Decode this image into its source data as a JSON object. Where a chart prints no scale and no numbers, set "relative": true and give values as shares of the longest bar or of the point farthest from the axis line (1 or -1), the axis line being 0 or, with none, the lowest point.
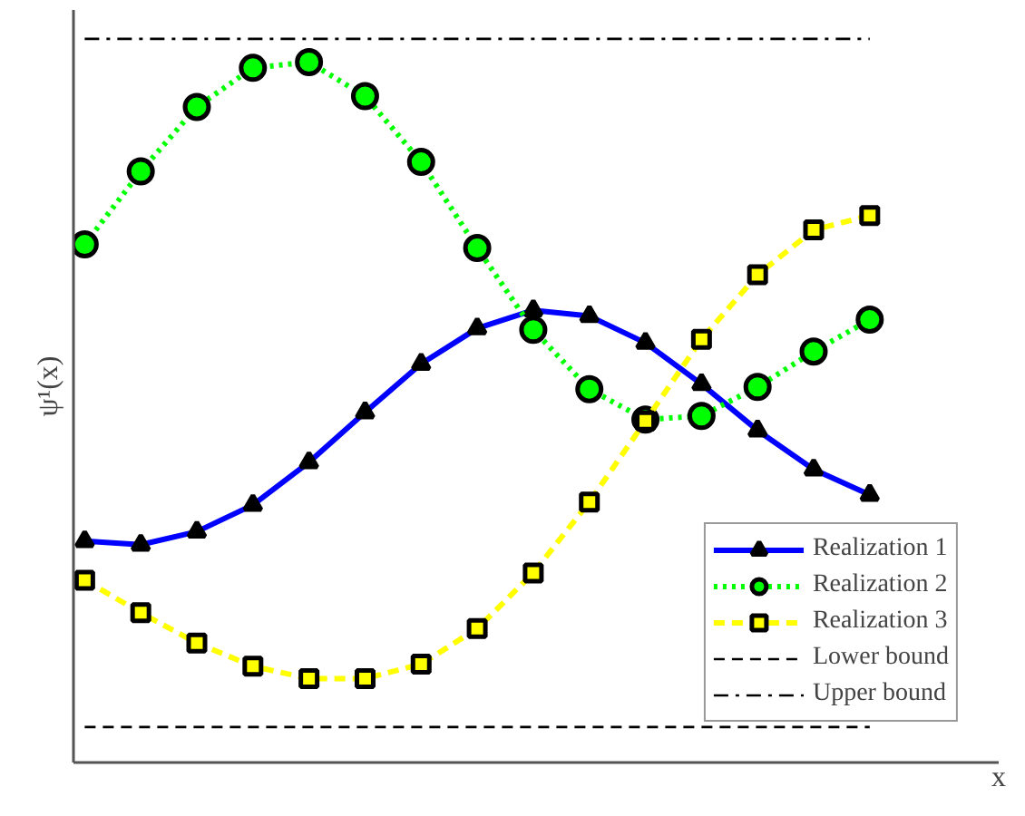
{
  "chart_data": {
    "type": "line",
    "relative": true,
    "ylabel": "ψ¹(x)",
    "xlabel": "x",
    "legend": "bottom right",
    "categories": [
      null,
      null,
      null,
      null,
      null,
      null,
      null,
      null,
      null,
      null,
      null,
      null,
      null,
      null,
      null
    ],
    "series": [
      {
        "name": "Realization 1",
        "color": "#0000ff",
        "marker": "triangle",
        "line_style": "solid",
        "values": [
          0.306,
          0.301,
          0.319,
          0.356,
          0.415,
          0.484,
          0.551,
          0.6,
          0.625,
          0.617,
          0.58,
          0.523,
          0.459,
          0.405,
          0.37
        ]
      },
      {
        "name": "Realization 2",
        "color": "#00ff00",
        "marker": "circle",
        "line_style": "dotted",
        "values": [
          0.716,
          0.817,
          0.906,
          0.96,
          0.968,
          0.921,
          0.83,
          0.711,
          0.598,
          0.516,
          0.474,
          0.479,
          0.519,
          0.568,
          0.612
        ]
      },
      {
        "name": "Realization 3",
        "color": "#ffff00",
        "marker": "square",
        "line_style": "dashed",
        "values": [
          0.252,
          0.207,
          0.165,
          0.133,
          0.116,
          0.116,
          0.136,
          0.185,
          0.262,
          0.36,
          0.472,
          0.585,
          0.674,
          0.736,
          0.756
        ]
      },
      {
        "name": "Lower bound",
        "color": "#000000",
        "marker": "none",
        "line_style": "dashed",
        "values": [
          0.049,
          0.049,
          0.049,
          0.049,
          0.049,
          0.049,
          0.049,
          0.049,
          0.049,
          0.049,
          0.049,
          0.049,
          0.049,
          0.049,
          0.049
        ]
      },
      {
        "name": "Upper bound",
        "color": "#000000",
        "marker": "none",
        "line_style": "dashdot",
        "values": [
          1,
          1,
          1,
          1,
          1,
          1,
          1,
          1,
          1,
          1,
          1,
          1,
          1,
          1,
          1
        ]
      }
    ]
  }
}
